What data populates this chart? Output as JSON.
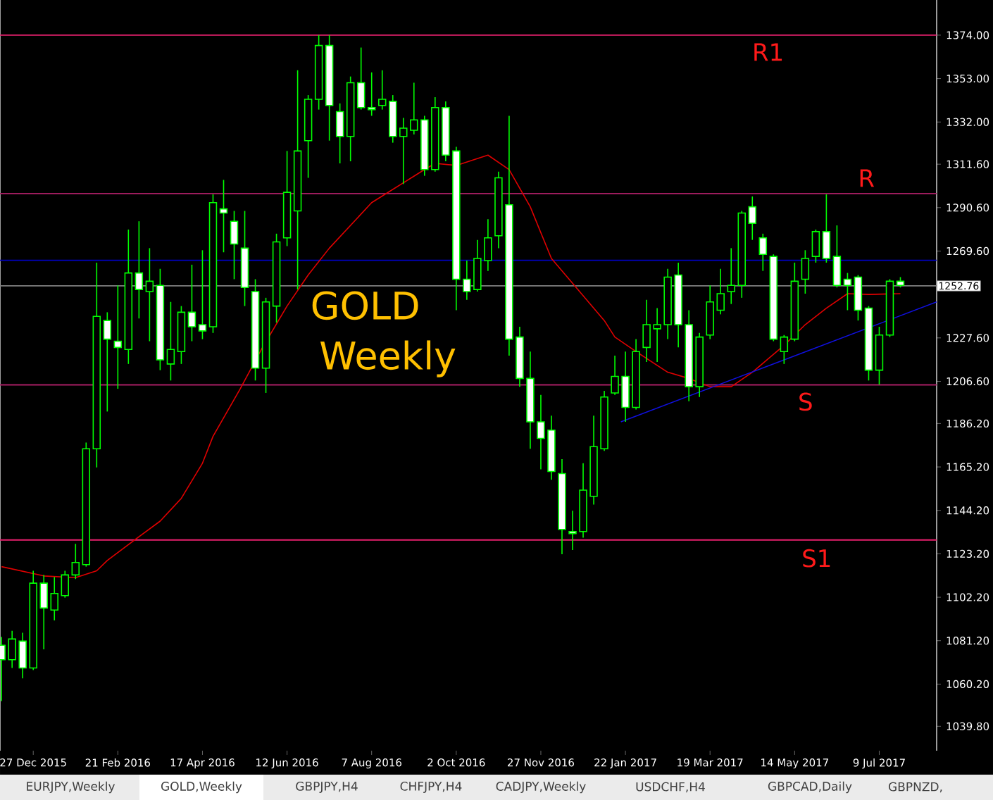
{
  "chart_data": {
    "type": "candlestick",
    "title": "GOLD",
    "subtitle": "Weekly",
    "x": [
      "2015-12-06",
      "2015-12-13",
      "2015-12-20",
      "2015-12-27",
      "2016-01-03",
      "2016-01-10",
      "2016-01-17",
      "2016-01-24",
      "2016-01-31",
      "2016-02-07",
      "2016-02-14",
      "2016-02-21",
      "2016-02-28",
      "2016-03-06",
      "2016-03-13",
      "2016-03-20",
      "2016-03-27",
      "2016-04-03",
      "2016-04-10",
      "2016-04-17",
      "2016-04-24",
      "2016-05-01",
      "2016-05-08",
      "2016-05-15",
      "2016-05-22",
      "2016-05-29",
      "2016-06-05",
      "2016-06-12",
      "2016-06-19",
      "2016-06-26",
      "2016-07-03",
      "2016-07-10",
      "2016-07-17",
      "2016-07-24",
      "2016-07-31",
      "2016-08-07",
      "2016-08-14",
      "2016-08-21",
      "2016-08-28",
      "2016-09-04",
      "2016-09-11",
      "2016-09-18",
      "2016-09-25",
      "2016-10-02",
      "2016-10-09",
      "2016-10-16",
      "2016-10-23",
      "2016-10-30",
      "2016-11-06",
      "2016-11-13",
      "2016-11-20",
      "2016-11-27",
      "2016-12-04",
      "2016-12-11",
      "2016-12-18",
      "2016-12-25",
      "2017-01-01",
      "2017-01-08",
      "2017-01-15",
      "2017-01-22",
      "2017-01-29",
      "2017-02-05",
      "2017-02-12",
      "2017-02-19",
      "2017-02-26",
      "2017-03-05",
      "2017-03-12",
      "2017-03-19",
      "2017-03-26",
      "2017-04-02",
      "2017-04-09",
      "2017-04-16",
      "2017-04-23",
      "2017-04-30",
      "2017-05-07",
      "2017-05-14",
      "2017-05-21",
      "2017-05-28",
      "2017-06-04",
      "2017-06-11",
      "2017-06-18",
      "2017-06-25",
      "2017-07-02",
      "2017-07-09",
      "2017-07-16",
      "2017-07-23"
    ],
    "ohlc": [
      [
        1079,
        1083,
        1052,
        1072
      ],
      [
        1072,
        1086,
        1068,
        1082
      ],
      [
        1081,
        1085,
        1063,
        1068
      ],
      [
        1068,
        1115,
        1067,
        1109
      ],
      [
        1109,
        1113,
        1077,
        1097
      ],
      [
        1096,
        1112,
        1091,
        1104
      ],
      [
        1103,
        1115,
        1102,
        1113
      ],
      [
        1113,
        1128,
        1111,
        1119
      ],
      [
        1118,
        1177,
        1117,
        1174
      ],
      [
        1174,
        1264,
        1165,
        1238
      ],
      [
        1236,
        1240,
        1192,
        1227
      ],
      [
        1226,
        1253,
        1203,
        1223
      ],
      [
        1222,
        1280,
        1215,
        1259
      ],
      [
        1259,
        1284,
        1237,
        1251
      ],
      [
        1250,
        1271,
        1226,
        1255
      ],
      [
        1253,
        1261,
        1212,
        1217
      ],
      [
        1215,
        1245,
        1207,
        1222
      ],
      [
        1221,
        1243,
        1215,
        1240
      ],
      [
        1240,
        1263,
        1226,
        1233
      ],
      [
        1234,
        1270,
        1227,
        1231
      ],
      [
        1233,
        1297,
        1230,
        1293
      ],
      [
        1290,
        1304,
        1269,
        1288
      ],
      [
        1284,
        1289,
        1256,
        1273
      ],
      [
        1271,
        1289,
        1243,
        1252
      ],
      [
        1250,
        1256,
        1207,
        1213
      ],
      [
        1213,
        1247,
        1201,
        1245
      ],
      [
        1243,
        1278,
        1235,
        1274
      ],
      [
        1276,
        1318,
        1272,
        1298
      ],
      [
        1289,
        1357,
        1251,
        1318
      ],
      [
        1323,
        1345,
        1305,
        1343
      ],
      [
        1343,
        1374,
        1338,
        1369
      ],
      [
        1369,
        1374,
        1323,
        1340
      ],
      [
        1337,
        1341,
        1312,
        1325
      ],
      [
        1325,
        1354,
        1313,
        1351
      ],
      [
        1351,
        1368,
        1338,
        1339
      ],
      [
        1339,
        1356,
        1335,
        1338
      ],
      [
        1340,
        1357,
        1338,
        1343
      ],
      [
        1342,
        1345,
        1322,
        1325
      ],
      [
        1325,
        1334,
        1302,
        1329
      ],
      [
        1328,
        1351,
        1326,
        1333
      ],
      [
        1333,
        1335,
        1306,
        1309
      ],
      [
        1309,
        1344,
        1308,
        1339
      ],
      [
        1339,
        1342,
        1313,
        1316
      ],
      [
        1318,
        1320,
        1241,
        1256
      ],
      [
        1256,
        1265,
        1246,
        1250
      ],
      [
        1251,
        1275,
        1250,
        1266
      ],
      [
        1265,
        1285,
        1260,
        1276
      ],
      [
        1277,
        1308,
        1271,
        1305
      ],
      [
        1292,
        1335,
        1219,
        1227
      ],
      [
        1228,
        1233,
        1204,
        1208
      ],
      [
        1208,
        1221,
        1174,
        1187
      ],
      [
        1187,
        1200,
        1164,
        1179
      ],
      [
        1183,
        1190,
        1159,
        1163
      ],
      [
        1162,
        1169,
        1123,
        1135
      ],
      [
        1134,
        1144,
        1125,
        1133
      ],
      [
        1134,
        1167,
        1131,
        1154
      ],
      [
        1151,
        1190,
        1147,
        1175
      ],
      [
        1174,
        1202,
        1173,
        1199
      ],
      [
        1201,
        1219,
        1200,
        1209
      ],
      [
        1209,
        1221,
        1187,
        1194
      ],
      [
        1194,
        1227,
        1193,
        1221
      ],
      [
        1223,
        1246,
        1216,
        1234
      ],
      [
        1232,
        1242,
        1216,
        1234
      ],
      [
        1234,
        1261,
        1227,
        1257
      ],
      [
        1258,
        1264,
        1223,
        1234
      ],
      [
        1234,
        1241,
        1197,
        1204
      ],
      [
        1204,
        1230,
        1199,
        1228
      ],
      [
        1229,
        1253,
        1227,
        1245
      ],
      [
        1241,
        1261,
        1239,
        1249
      ],
      [
        1250,
        1271,
        1244,
        1253
      ],
      [
        1253,
        1289,
        1247,
        1288
      ],
      [
        1291,
        1296,
        1275,
        1283
      ],
      [
        1276,
        1278,
        1260,
        1268
      ],
      [
        1267,
        1268,
        1226,
        1227
      ],
      [
        1221,
        1229,
        1215,
        1228
      ],
      [
        1227,
        1264,
        1226,
        1255
      ],
      [
        1256,
        1270,
        1249,
        1266
      ],
      [
        1267,
        1280,
        1264,
        1279
      ],
      [
        1279,
        1297,
        1264,
        1266
      ],
      [
        1267,
        1282,
        1252,
        1253
      ],
      [
        1256,
        1259,
        1241,
        1253
      ],
      [
        1257,
        1258,
        1236,
        1241
      ],
      [
        1242,
        1243,
        1207,
        1212
      ],
      [
        1212,
        1233,
        1205,
        1229
      ],
      [
        1229,
        1256,
        1228,
        1255
      ],
      [
        1255,
        1257,
        1252,
        1253
      ]
    ],
    "series": [
      {
        "type": "line",
        "color": "#e00000",
        "x": [
          "2015-12-06",
          "2016-01-03",
          "2016-01-24",
          "2016-02-07",
          "2016-02-14",
          "2016-03-06",
          "2016-03-20",
          "2016-04-03",
          "2016-04-17",
          "2016-04-24",
          "2016-05-12",
          "2016-05-26",
          "2016-06-12",
          "2016-06-26",
          "2016-07-10",
          "2016-08-07",
          "2016-09-11",
          "2016-09-18",
          "2016-10-02",
          "2016-10-23",
          "2016-11-06",
          "2016-11-20",
          "2016-12-04",
          "2016-12-18",
          "2017-01-08",
          "2017-01-15",
          "2017-01-29",
          "2017-02-19",
          "2017-03-05",
          "2017-03-19",
          "2017-04-02",
          "2017-04-16",
          "2017-05-07",
          "2017-05-21",
          "2017-06-04",
          "2017-06-18",
          "2017-07-02",
          "2017-07-23"
        ],
        "values": [
          1117,
          1112.5,
          1111.7,
          1115,
          1120,
          1131.5,
          1139,
          1150,
          1167,
          1180,
          1203,
          1222,
          1243,
          1258,
          1271,
          1293,
          1309,
          1312,
          1311,
          1316,
          1309,
          1291,
          1266,
          1254,
          1236,
          1228,
          1221,
          1211,
          1208,
          1204,
          1204,
          1211,
          1224,
          1234,
          1242,
          1249,
          1248.6,
          1249
        ]
      },
      {
        "type": "line",
        "color": "#1010e0",
        "x": [
          "2017-01-19",
          "2017-08-16"
        ],
        "values": [
          1187,
          1245
        ]
      }
    ],
    "xlim": [
      "2015-12-05",
      "2017-08-16"
    ],
    "xticks": [
      {
        "value": "2015-12-27",
        "label": "27 Dec 2015"
      },
      {
        "value": "2016-02-21",
        "label": "21 Feb 2016"
      },
      {
        "value": "2016-04-17",
        "label": "17 Apr 2016"
      },
      {
        "value": "2016-06-12",
        "label": "12 Jun 2016"
      },
      {
        "value": "2016-08-07",
        "label": "7 Aug 2016"
      },
      {
        "value": "2016-10-02",
        "label": "2 Oct 2016"
      },
      {
        "value": "2016-11-27",
        "label": "27 Nov 2016"
      },
      {
        "value": "2017-01-22",
        "label": "22 Jan 2017"
      },
      {
        "value": "2017-03-19",
        "label": "19 Mar 2017"
      },
      {
        "value": "2017-05-14",
        "label": "14 May 2017"
      },
      {
        "value": "2017-07-09",
        "label": "9 Jul 2017"
      }
    ],
    "ylim": [
      1028,
      1391
    ],
    "yticks": [
      {
        "value": 1039.8,
        "label": "1039.80"
      },
      {
        "value": 1060.2,
        "label": "1060.20"
      },
      {
        "value": 1081.2,
        "label": "1081.20"
      },
      {
        "value": 1102.2,
        "label": "1102.20"
      },
      {
        "value": 1123.2,
        "label": "1123.20"
      },
      {
        "value": 1144.2,
        "label": "1144.20"
      },
      {
        "value": 1165.2,
        "label": "1165.20"
      },
      {
        "value": 1186.2,
        "label": "1186.20"
      },
      {
        "value": 1206.6,
        "label": "1206.60"
      },
      {
        "value": 1227.6,
        "label": "1227.60"
      },
      {
        "value": 1269.6,
        "label": "1269.60"
      },
      {
        "value": 1290.6,
        "label": "1290.60"
      },
      {
        "value": 1311.6,
        "label": "1311.60"
      },
      {
        "value": 1332,
        "label": "1332.00"
      },
      {
        "value": 1353,
        "label": "1353.00"
      },
      {
        "value": 1374,
        "label": "1374.00"
      }
    ],
    "ref_lines": [
      {
        "axis": "y",
        "value": 1374,
        "label": "R1",
        "color": "#e8206e"
      },
      {
        "axis": "y",
        "value": 1297.4,
        "label": "R",
        "color": "#a81e64"
      },
      {
        "axis": "y",
        "value": 1265.1,
        "color": "#0000c0"
      },
      {
        "axis": "y",
        "value": 1252.76,
        "label": "1252.76",
        "color": "#808080"
      },
      {
        "axis": "y",
        "value": 1204.9,
        "label": "S",
        "color": "#a81e64"
      },
      {
        "axis": "y",
        "value": 1129.9,
        "label": "S1",
        "color": "#e8206e"
      }
    ],
    "annotations": [
      "EURJPY,Weekly",
      "GOLD,Weekly",
      "GBPJPY,H4",
      "CHFJPY,H4",
      "CADJPY,Weekly",
      "USDCHF,H4",
      "GBPCAD,Daily",
      "GBPNZD,"
    ],
    "grid": false
  }
}
